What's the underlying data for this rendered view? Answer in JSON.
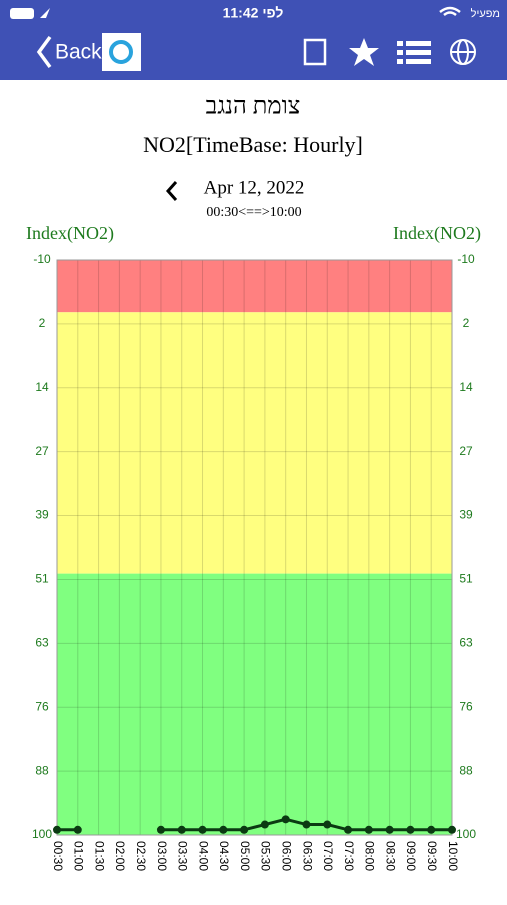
{
  "status_bar": {
    "time": "11:42 לפי",
    "carrier": "מפעיל"
  },
  "nav_bar": {
    "back": "Back"
  },
  "header": {
    "station": "צומת הנגב",
    "subtitle": "NO2[TimeBase: Hourly]",
    "date": "Apr 12, 2022",
    "range": "00:30<==>10:00"
  },
  "chart_data": {
    "type": "line",
    "ylabel": "Index(NO2)",
    "y2label": "Index(NO2)",
    "inverted": true,
    "ylim": [
      -10,
      100
    ],
    "yticks": [
      -10,
      {
        "value": 2.22,
        "label": "2"
      },
      {
        "value": 14.44,
        "label": "14"
      },
      {
        "value": 26.67,
        "label": "27"
      },
      {
        "value": 38.89,
        "label": "39"
      },
      {
        "value": 51.11,
        "label": "51"
      },
      {
        "value": 63.33,
        "label": "63"
      },
      {
        "value": 75.56,
        "label": "76"
      },
      {
        "value": 87.78,
        "label": "88"
      },
      100
    ],
    "bands": [
      {
        "from": -10,
        "to": 0,
        "color": "#ff8080"
      },
      {
        "from": 0,
        "to": 50,
        "color": "#ffff80"
      },
      {
        "from": 50,
        "to": 100,
        "color": "#80ff80"
      }
    ],
    "grid": true,
    "categories": [
      "00:30",
      "01:00",
      "01:30",
      "02:00",
      "02:30",
      "03:00",
      "03:30",
      "04:00",
      "04:30",
      "05:00",
      "05:30",
      "06:00",
      "06:30",
      "07:00",
      "07:30",
      "08:00",
      "08:30",
      "09:00",
      "09:30",
      "10:00"
    ],
    "color": "#0b3a12",
    "values": [
      99,
      99,
      null,
      null,
      null,
      99,
      99,
      99,
      99,
      99,
      98,
      97,
      98,
      98,
      99,
      99,
      99,
      99,
      99,
      99
    ]
  }
}
